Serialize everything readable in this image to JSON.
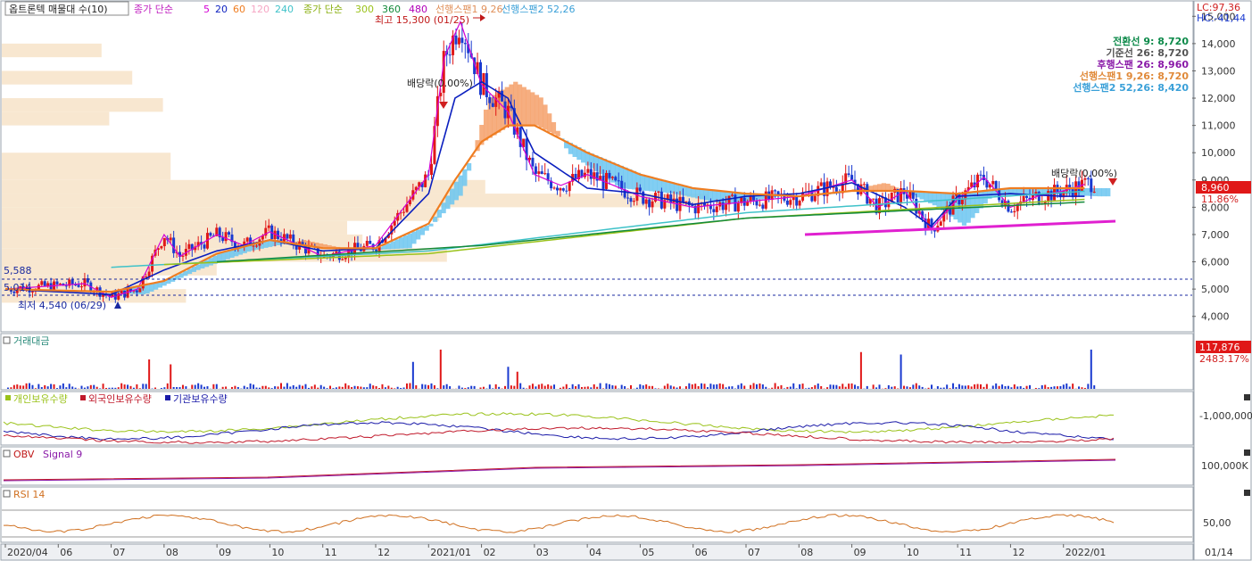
{
  "legend": {
    "title": "옵트론텍 매물대 수(10)",
    "ma_label": "종가 단순",
    "ma_periods": [
      "5",
      "20",
      "60",
      "120",
      "240"
    ],
    "ma_colors": [
      "#d400d4",
      "#0b1fbf",
      "#ef7d21",
      "#f6a6c4",
      "#3fc2c9"
    ],
    "ma_long_label": "종가 단순",
    "ma_long_periods": [
      "300",
      "360",
      "480"
    ],
    "ma_long_colors": [
      "#9ac21a",
      "#138a3a",
      "#b000b8"
    ],
    "span1": "선행스팬1 9,26",
    "span2": "선행스팬2 52,26"
  },
  "corner": {
    "lc": "LC:97,36",
    "hc": "HC:-41,44"
  },
  "ichimoku": [
    {
      "text": "전환선 9: 8,720",
      "color": "#0d8a4a"
    },
    {
      "text": "기준선 26: 8,720",
      "color": "#555555"
    },
    {
      "text": "후행스팬 26: 8,960",
      "color": "#8a1aa8"
    },
    {
      "text": "선행스팬1 9,26: 8,720",
      "color": "#e08a3a"
    },
    {
      "text": "선행스팬2 52,26: 8,420",
      "color": "#3aa0d8"
    }
  ],
  "annotations": {
    "high": "최고 15,300 (01/25)",
    "low": "최저 4,540 (06/29)",
    "div1": "배당락(0.00%)",
    "div2": "배당락(0,00%)",
    "level_upper": "5,588",
    "level_lower": "5,014"
  },
  "price_badge": {
    "value": "8,960",
    "pct": "11.86%"
  },
  "volume_badge": {
    "value": "117,876",
    "pct": "2483.17%"
  },
  "panels": {
    "volume": "거래대금",
    "holders": [
      "개인보유수량",
      "외국인보유수량",
      "기관보유수량"
    ],
    "holder_colors": [
      "#9ac21a",
      "#c0182a",
      "#1a1aa8"
    ],
    "obv": [
      "OBV",
      "Signal 9"
    ],
    "rsi": "RSI 14"
  },
  "axis_labels": {
    "holders": "-1,000,000",
    "obv": "100,000K",
    "rsi": "50,00"
  },
  "chart_data": {
    "type": "candlestick",
    "title": "옵트론텍 매물대 수(10)",
    "price_axis": {
      "ylim": [
        3500,
        15500
      ],
      "ticks": [
        "4,000",
        "5,000",
        "6,000",
        "7,000",
        "8,000",
        "9,000",
        "10,000",
        "11,000",
        "12,000",
        "13,000",
        "14,000",
        "15,000"
      ],
      "tick_values": [
        4000,
        5000,
        6000,
        7000,
        8000,
        9000,
        10000,
        11000,
        12000,
        13000,
        14000,
        15000
      ]
    },
    "x_ticks": [
      "2020/04",
      "06",
      "07",
      "08",
      "09",
      "10",
      "11",
      "12",
      "2021/01",
      "02",
      "03",
      "04",
      "05",
      "06",
      "07",
      "08",
      "09",
      "10",
      "11",
      "12",
      "2022/01"
    ],
    "x_right_label": "01/14",
    "price_path_months": [
      0,
      1.5,
      2,
      2.5,
      3,
      3.3,
      4,
      4.5,
      5,
      6,
      7,
      8,
      8.3,
      8.6,
      9,
      9.5,
      10,
      10.5,
      11,
      12,
      13,
      14,
      15,
      16,
      16.5,
      17,
      17.5,
      18,
      18.5,
      19,
      19.5,
      20,
      20.5
    ],
    "price_path_values": [
      5000,
      5200,
      4700,
      5000,
      7000,
      6200,
      7000,
      6600,
      7100,
      6200,
      6600,
      9200,
      13500,
      14800,
      12500,
      11500,
      9200,
      8800,
      9200,
      8400,
      8000,
      8200,
      8400,
      9000,
      8000,
      8600,
      7200,
      8300,
      9100,
      8000,
      8400,
      8600,
      8900
    ],
    "ma20_months": [
      0,
      2,
      3,
      4,
      5,
      6,
      7,
      8,
      8.5,
      9,
      9.5,
      10,
      11,
      12,
      13,
      14,
      15,
      16,
      17,
      17.5,
      18,
      19,
      20,
      20.5
    ],
    "ma20_values": [
      5000,
      4800,
      5700,
      6400,
      6800,
      6400,
      6500,
      8500,
      12000,
      12600,
      12000,
      10000,
      8700,
      8500,
      8100,
      8400,
      8500,
      8900,
      8000,
      7300,
      8400,
      8500,
      8400,
      8400
    ],
    "ma60_months": [
      0,
      2,
      3,
      4,
      5,
      6,
      7,
      8,
      8.5,
      9,
      9.5,
      10,
      11,
      12,
      13,
      14,
      15,
      16,
      17,
      18,
      19,
      20,
      20.5
    ],
    "ma60_values": [
      5000,
      4900,
      5300,
      6300,
      6800,
      6500,
      6500,
      7400,
      9000,
      10400,
      11000,
      11000,
      10000,
      9200,
      8700,
      8500,
      8400,
      8600,
      8600,
      8500,
      8700,
      8700,
      8700
    ],
    "volume_spikes": {
      "months": [
        2.7,
        3.1,
        7.7,
        8.2,
        9.5,
        9.7,
        16.2,
        16.9,
        20.5
      ],
      "values": [
        0.6,
        0.5,
        0.55,
        0.8,
        0.45,
        0.35,
        0.75,
        0.7,
        0.8
      ]
    },
    "volume_profile": [
      {
        "price": 4750,
        "width": 0.24
      },
      {
        "price": 5250,
        "width": 0.19
      },
      {
        "price": 5750,
        "width": 0.28
      },
      {
        "price": 6250,
        "width": 0.58
      },
      {
        "price": 6750,
        "width": 0.47
      },
      {
        "price": 7250,
        "width": 0.45
      },
      {
        "price": 7750,
        "width": 0.57
      },
      {
        "price": 8250,
        "width": 0.92
      },
      {
        "price": 8750,
        "width": 0.63
      },
      {
        "price": 9250,
        "width": 0.22
      },
      {
        "price": 9750,
        "width": 0.22
      },
      {
        "price": 11250,
        "width": 0.14
      },
      {
        "price": 11750,
        "width": 0.21
      },
      {
        "price": 12750,
        "width": 0.17
      },
      {
        "price": 13750,
        "width": 0.13
      }
    ]
  }
}
